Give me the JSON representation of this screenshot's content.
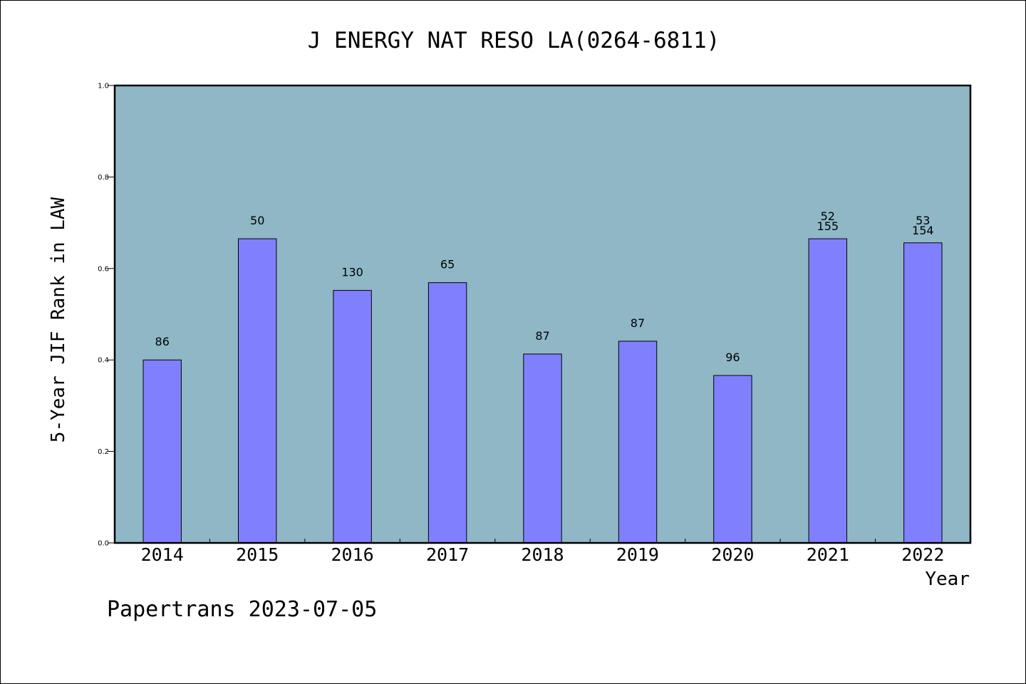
{
  "chart_data": {
    "type": "bar",
    "title": "J ENERGY NAT RESO LA(0264-6811)",
    "xlabel": "Year",
    "ylabel": "5-Year JIF Rank in LAW",
    "categories": [
      "2014",
      "2015",
      "2016",
      "2017",
      "2018",
      "2019",
      "2020",
      "2021",
      "2022"
    ],
    "values": [
      0.4,
      0.665,
      0.552,
      0.569,
      0.413,
      0.441,
      0.366,
      0.665,
      0.656
    ],
    "bar_labels": [
      [
        "86"
      ],
      [
        "50"
      ],
      [
        "130"
      ],
      [
        "65"
      ],
      [
        "87"
      ],
      [
        "87"
      ],
      [
        "96"
      ],
      [
        "52",
        "155"
      ],
      [
        "53",
        "154"
      ]
    ],
    "ylim": [
      0,
      1.0
    ],
    "yticks": [
      "0.0",
      "0.2",
      "0.4",
      "0.6",
      "0.8",
      "1.0"
    ],
    "grid": false,
    "colors": {
      "plot_background": "#8fb7c6",
      "bar_fill": "#8080ff",
      "bar_stroke": "#000000"
    }
  },
  "footer": {
    "text": "Papertrans 2023-07-05"
  }
}
